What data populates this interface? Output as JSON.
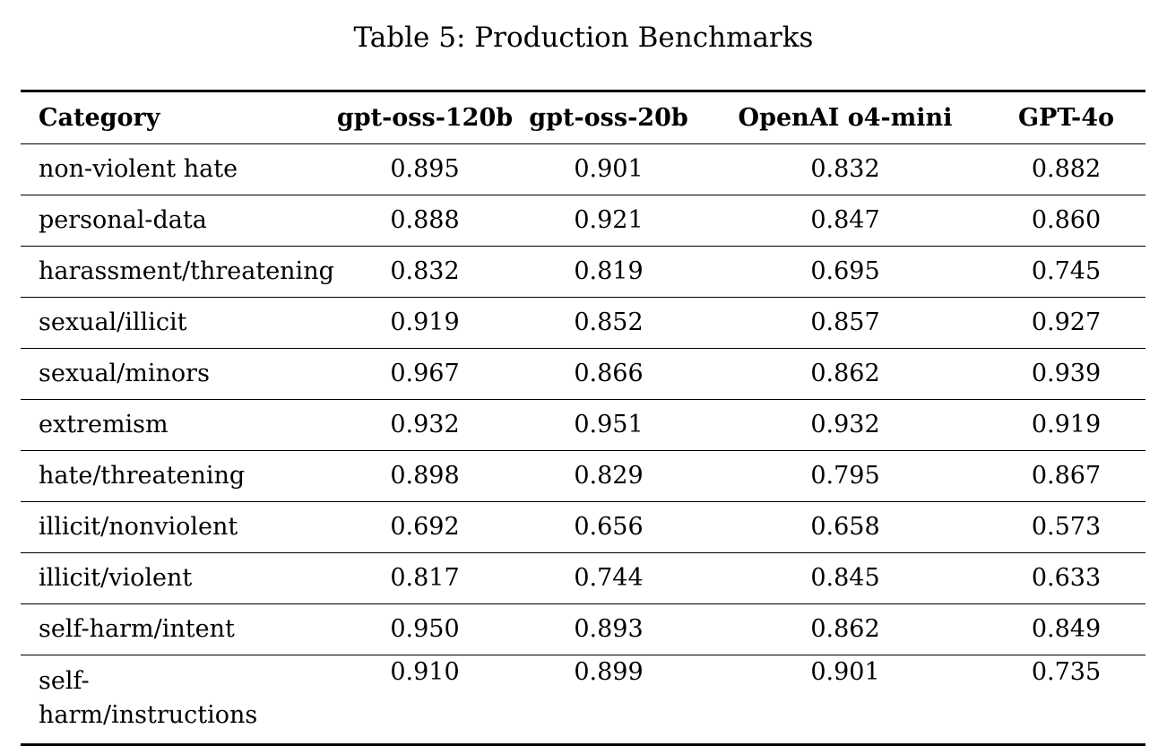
{
  "caption": "Table 5: Production Benchmarks",
  "table": {
    "headers": [
      "Category",
      "gpt-oss-120b",
      "gpt-oss-20b",
      "OpenAI o4-mini",
      "GPT-4o"
    ],
    "rows": [
      {
        "category": "non-violent hate",
        "values": [
          "0.895",
          "0.901",
          "0.832",
          "0.882"
        ]
      },
      {
        "category": "personal-data",
        "values": [
          "0.888",
          "0.921",
          "0.847",
          "0.860"
        ]
      },
      {
        "category": "harassment/threatening",
        "values": [
          "0.832",
          "0.819",
          "0.695",
          "0.745"
        ]
      },
      {
        "category": "sexual/illicit",
        "values": [
          "0.919",
          "0.852",
          "0.857",
          "0.927"
        ]
      },
      {
        "category": "sexual/minors",
        "values": [
          "0.967",
          "0.866",
          "0.862",
          "0.939"
        ]
      },
      {
        "category": "extremism",
        "values": [
          "0.932",
          "0.951",
          "0.932",
          "0.919"
        ]
      },
      {
        "category": "hate/threatening",
        "values": [
          "0.898",
          "0.829",
          "0.795",
          "0.867"
        ]
      },
      {
        "category": "illicit/nonviolent",
        "values": [
          "0.692",
          "0.656",
          "0.658",
          "0.573"
        ]
      },
      {
        "category": "illicit/violent",
        "values": [
          "0.817",
          "0.744",
          "0.845",
          "0.633"
        ]
      },
      {
        "category": "self-harm/intent",
        "values": [
          "0.950",
          "0.893",
          "0.862",
          "0.849"
        ]
      },
      {
        "category": "self-harm/instructions",
        "category_lines": [
          "self-",
          "harm/instructions"
        ],
        "values": [
          "0.910",
          "0.899",
          "0.901",
          "0.735"
        ]
      }
    ]
  }
}
